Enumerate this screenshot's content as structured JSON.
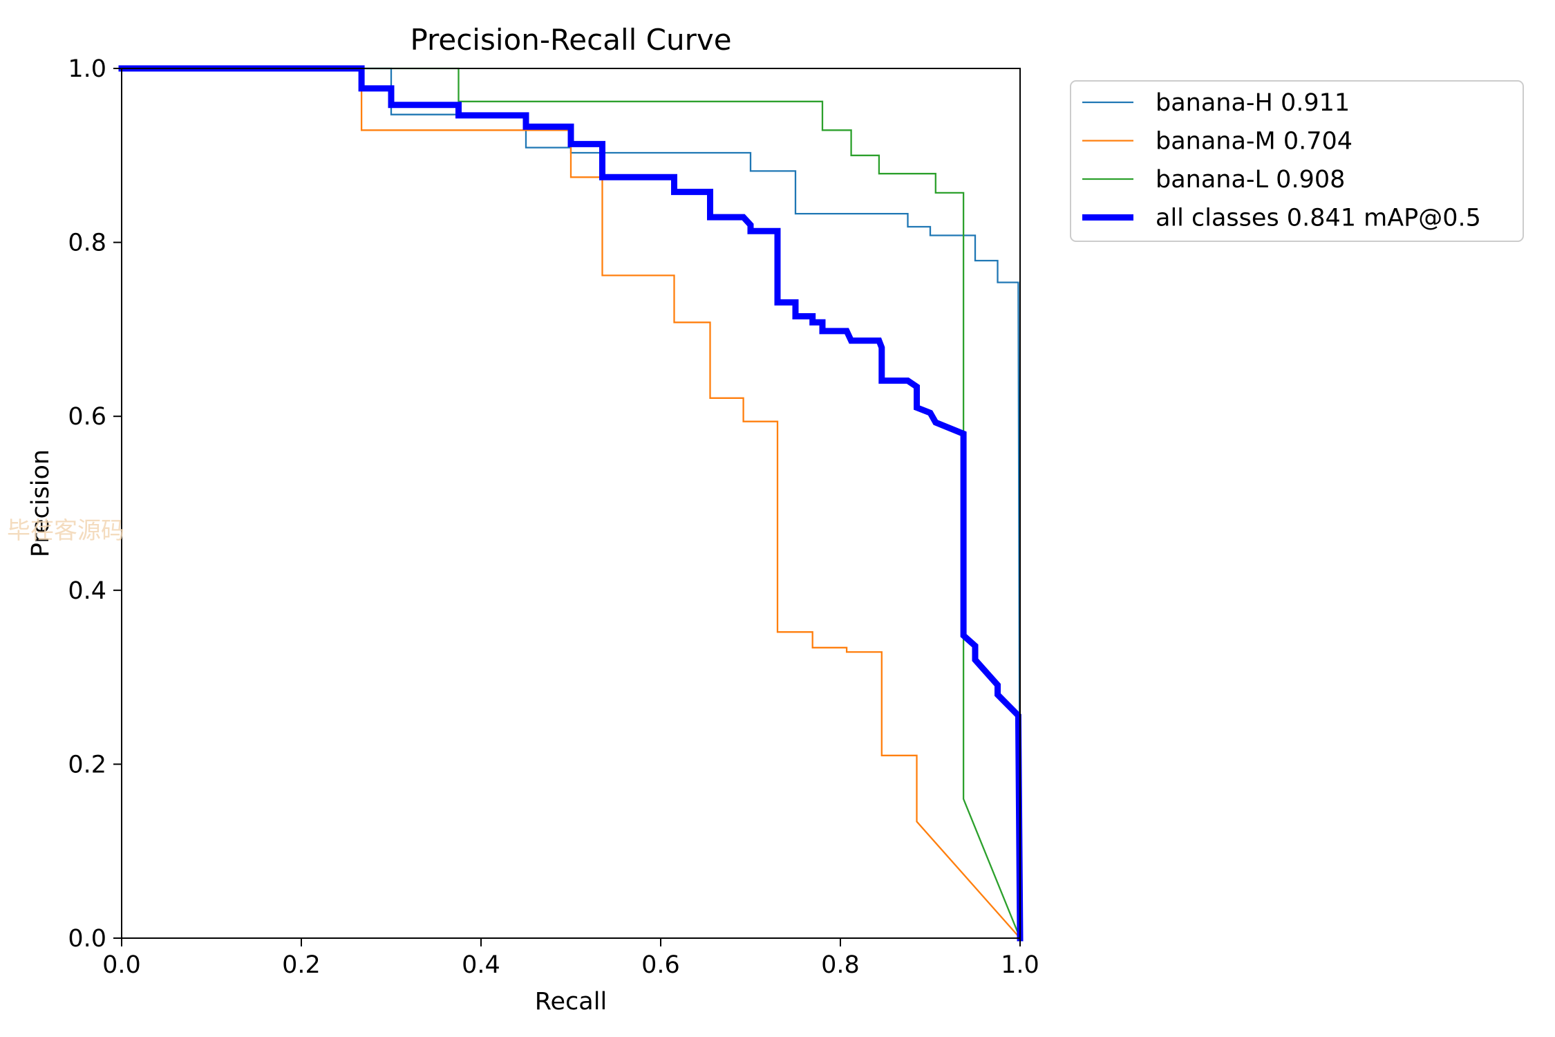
{
  "watermark": "毕荏客源码",
  "chart_data": {
    "type": "line",
    "title": "Precision-Recall Curve",
    "xlabel": "Recall",
    "ylabel": "Precision",
    "xlim": [
      0,
      1
    ],
    "ylim": [
      0,
      1
    ],
    "xticks": [
      "0.0",
      "0.2",
      "0.4",
      "0.6",
      "0.8",
      "1.0"
    ],
    "yticks": [
      "0.0",
      "0.2",
      "0.4",
      "0.6",
      "0.8",
      "1.0"
    ],
    "grid": false,
    "legend_position": "outside-top-right",
    "series": [
      {
        "name": "banana-H 0.911",
        "color": "#1f77b4",
        "width": "thin",
        "points": [
          [
            0,
            1
          ],
          [
            0.3,
            1
          ],
          [
            0.3,
            0.947
          ],
          [
            0.45,
            0.947
          ],
          [
            0.45,
            0.909
          ],
          [
            0.5,
            0.909
          ],
          [
            0.5,
            0.903
          ],
          [
            0.7,
            0.903
          ],
          [
            0.7,
            0.882
          ],
          [
            0.75,
            0.882
          ],
          [
            0.75,
            0.833
          ],
          [
            0.875,
            0.833
          ],
          [
            0.875,
            0.818
          ],
          [
            0.9,
            0.818
          ],
          [
            0.9,
            0.808
          ],
          [
            0.95,
            0.808
          ],
          [
            0.95,
            0.779
          ],
          [
            0.975,
            0.779
          ],
          [
            0.975,
            0.754
          ],
          [
            0.998,
            0.754
          ],
          [
            1.0,
            0.0
          ]
        ]
      },
      {
        "name": "banana-M 0.704",
        "color": "#ff7f0e",
        "width": "thin",
        "points": [
          [
            0,
            1
          ],
          [
            0.267,
            1
          ],
          [
            0.267,
            0.929
          ],
          [
            0.5,
            0.929
          ],
          [
            0.5,
            0.875
          ],
          [
            0.535,
            0.875
          ],
          [
            0.535,
            0.762
          ],
          [
            0.615,
            0.762
          ],
          [
            0.615,
            0.708
          ],
          [
            0.655,
            0.708
          ],
          [
            0.655,
            0.621
          ],
          [
            0.692,
            0.621
          ],
          [
            0.692,
            0.594
          ],
          [
            0.73,
            0.594
          ],
          [
            0.73,
            0.352
          ],
          [
            0.769,
            0.352
          ],
          [
            0.769,
            0.334
          ],
          [
            0.807,
            0.334
          ],
          [
            0.807,
            0.329
          ],
          [
            0.846,
            0.329
          ],
          [
            0.846,
            0.21
          ],
          [
            0.885,
            0.21
          ],
          [
            0.885,
            0.134
          ],
          [
            1.0,
            0.0
          ]
        ]
      },
      {
        "name": "banana-L 0.908",
        "color": "#2ca02c",
        "width": "thin",
        "points": [
          [
            0,
            1
          ],
          [
            0.375,
            1
          ],
          [
            0.375,
            0.962
          ],
          [
            0.78,
            0.962
          ],
          [
            0.78,
            0.929
          ],
          [
            0.812,
            0.929
          ],
          [
            0.812,
            0.9
          ],
          [
            0.843,
            0.9
          ],
          [
            0.843,
            0.879
          ],
          [
            0.906,
            0.879
          ],
          [
            0.906,
            0.857
          ],
          [
            0.937,
            0.857
          ],
          [
            0.937,
            0.16
          ],
          [
            1.0,
            0.0
          ]
        ]
      },
      {
        "name": "all classes 0.841 mAP@0.5",
        "color": "#0000ff",
        "width": "thick",
        "points": [
          [
            0,
            1
          ],
          [
            0.267,
            1
          ],
          [
            0.267,
            0.977
          ],
          [
            0.3,
            0.977
          ],
          [
            0.3,
            0.958
          ],
          [
            0.375,
            0.958
          ],
          [
            0.375,
            0.946
          ],
          [
            0.45,
            0.946
          ],
          [
            0.45,
            0.933
          ],
          [
            0.5,
            0.933
          ],
          [
            0.5,
            0.913
          ],
          [
            0.535,
            0.913
          ],
          [
            0.535,
            0.875
          ],
          [
            0.615,
            0.875
          ],
          [
            0.615,
            0.858
          ],
          [
            0.655,
            0.858
          ],
          [
            0.655,
            0.829
          ],
          [
            0.692,
            0.829
          ],
          [
            0.7,
            0.82
          ],
          [
            0.7,
            0.813
          ],
          [
            0.73,
            0.813
          ],
          [
            0.73,
            0.731
          ],
          [
            0.75,
            0.731
          ],
          [
            0.75,
            0.715
          ],
          [
            0.769,
            0.715
          ],
          [
            0.769,
            0.708
          ],
          [
            0.78,
            0.708
          ],
          [
            0.78,
            0.698
          ],
          [
            0.807,
            0.698
          ],
          [
            0.812,
            0.687
          ],
          [
            0.843,
            0.687
          ],
          [
            0.846,
            0.679
          ],
          [
            0.846,
            0.641
          ],
          [
            0.875,
            0.641
          ],
          [
            0.885,
            0.634
          ],
          [
            0.885,
            0.61
          ],
          [
            0.9,
            0.604
          ],
          [
            0.906,
            0.593
          ],
          [
            0.937,
            0.58
          ],
          [
            0.937,
            0.348
          ],
          [
            0.95,
            0.336
          ],
          [
            0.95,
            0.32
          ],
          [
            0.975,
            0.291
          ],
          [
            0.975,
            0.28
          ],
          [
            0.998,
            0.256
          ],
          [
            1.0,
            0.0
          ]
        ]
      }
    ]
  }
}
